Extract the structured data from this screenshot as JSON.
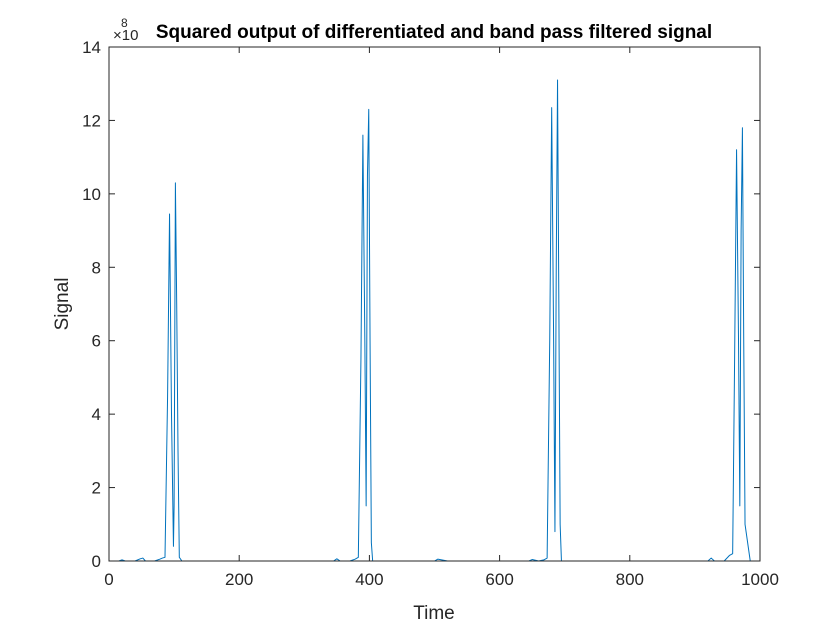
{
  "chart_data": {
    "type": "line",
    "title": "Squared output of differentiated and band pass filtered signal",
    "xlabel": "Time",
    "ylabel": "Signal",
    "y_exponent_label": "×10",
    "y_exponent_power": "8",
    "xlim": [
      0,
      1000
    ],
    "ylim": [
      0,
      14
    ],
    "xticks": [
      0,
      200,
      400,
      600,
      800,
      1000
    ],
    "yticks": [
      0,
      2,
      4,
      6,
      8,
      10,
      12,
      14
    ],
    "grid": false,
    "legend": "none",
    "line_color": "#0072BD",
    "series": [
      {
        "x": [
          0,
          15,
          20,
          25,
          40,
          48,
          52,
          56,
          70,
          78,
          82,
          86,
          90,
          93,
          96,
          99,
          100,
          102,
          104,
          106,
          108,
          112,
          125,
          200,
          300,
          330,
          345,
          350,
          355,
          370,
          378,
          383,
          387,
          390,
          393,
          395,
          397,
          399,
          401,
          403,
          405,
          420,
          500,
          505,
          520,
          600,
          625,
          645,
          650,
          660,
          668,
          673,
          677,
          680,
          683,
          685,
          687,
          689,
          691,
          693,
          695,
          710,
          800,
          900,
          920,
          925,
          930,
          945,
          953,
          958,
          961,
          964,
          967,
          969,
          971,
          973,
          975,
          977,
          985,
          1000
        ],
        "y": [
          0,
          0,
          0.03,
          0,
          0,
          0.06,
          0.08,
          0,
          0,
          0.05,
          0.08,
          0.1,
          4.5,
          9.45,
          4.0,
          0.4,
          1.5,
          10.3,
          7.0,
          3.0,
          0.1,
          0,
          0,
          0,
          0,
          0,
          0,
          0.06,
          0,
          0,
          0.05,
          0.1,
          5.5,
          11.6,
          6.0,
          1.5,
          10.5,
          12.3,
          6.0,
          0.5,
          0,
          0,
          0,
          0.05,
          0,
          0,
          0,
          0,
          0.04,
          0,
          0.03,
          0.08,
          6.0,
          12.35,
          6.0,
          0.8,
          8.0,
          13.1,
          7.0,
          1.0,
          0,
          0,
          0,
          0,
          0,
          0.08,
          0,
          0,
          0.15,
          0.2,
          5.5,
          11.2,
          6.0,
          1.5,
          9.0,
          11.8,
          6.0,
          1.0,
          0,
          0
        ]
      }
    ]
  }
}
